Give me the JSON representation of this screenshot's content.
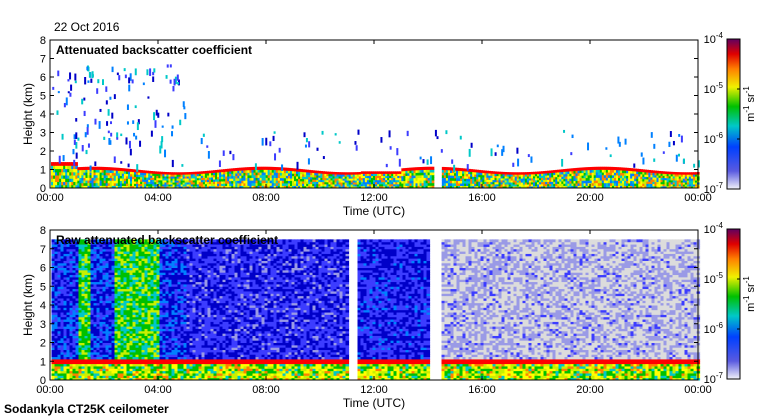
{
  "date": "22 Oct 2016",
  "instrument": "Sodankyla CT25K ceilometer",
  "chart_data": [
    {
      "type": "heatmap",
      "title": "Attenuated backscatter coefficient",
      "xlabel": "Time (UTC)",
      "ylabel": "Height (km)",
      "xticks": [
        "00:00",
        "04:00",
        "08:00",
        "12:00",
        "16:00",
        "20:00",
        "00:00"
      ],
      "yticks": [
        "0",
        "1",
        "2",
        "3",
        "4",
        "5",
        "6",
        "7",
        "8"
      ],
      "xlim_hours": [
        0,
        24
      ],
      "ylim_km": [
        0,
        8
      ],
      "colorbar": {
        "label_base": "m",
        "label_exp1": "-1",
        "label_mid": " sr",
        "label_exp2": "-1",
        "ticks": [
          {
            "base": "10",
            "exp": "-4"
          },
          {
            "base": "10",
            "exp": "-5"
          },
          {
            "base": "10",
            "exp": "-6"
          },
          {
            "base": "10",
            "exp": "-7"
          }
        ],
        "scale": "log",
        "range": [
          1e-07,
          0.0001
        ]
      },
      "layers": [
        {
          "name": "boundary layer",
          "t_start": 0.0,
          "t_end": 24.0
        },
        {
          "name": "gap",
          "t_start": 14.2,
          "t_end": 14.5
        }
      ]
    },
    {
      "type": "heatmap",
      "title": "Raw attenuated backscatter coefficient",
      "xlabel": "Time (UTC)",
      "ylabel": "Height (km)",
      "xticks": [
        "00:00",
        "04:00",
        "08:00",
        "12:00",
        "16:00",
        "20:00",
        "00:00"
      ],
      "yticks": [
        "0",
        "1",
        "2",
        "3",
        "4",
        "5",
        "6",
        "7",
        "8"
      ],
      "xlim_hours": [
        0,
        24
      ],
      "ylim_km": [
        0,
        8
      ],
      "colorbar": {
        "label_base": "m",
        "label_exp1": "-1",
        "label_mid": " sr",
        "label_exp2": "-1",
        "ticks": [
          {
            "base": "10",
            "exp": "-4"
          },
          {
            "base": "10",
            "exp": "-5"
          },
          {
            "base": "10",
            "exp": "-6"
          },
          {
            "base": "10",
            "exp": "-7"
          }
        ],
        "scale": "log",
        "range": [
          1e-07,
          0.0001
        ]
      },
      "data_top_km": 7.5
    }
  ]
}
